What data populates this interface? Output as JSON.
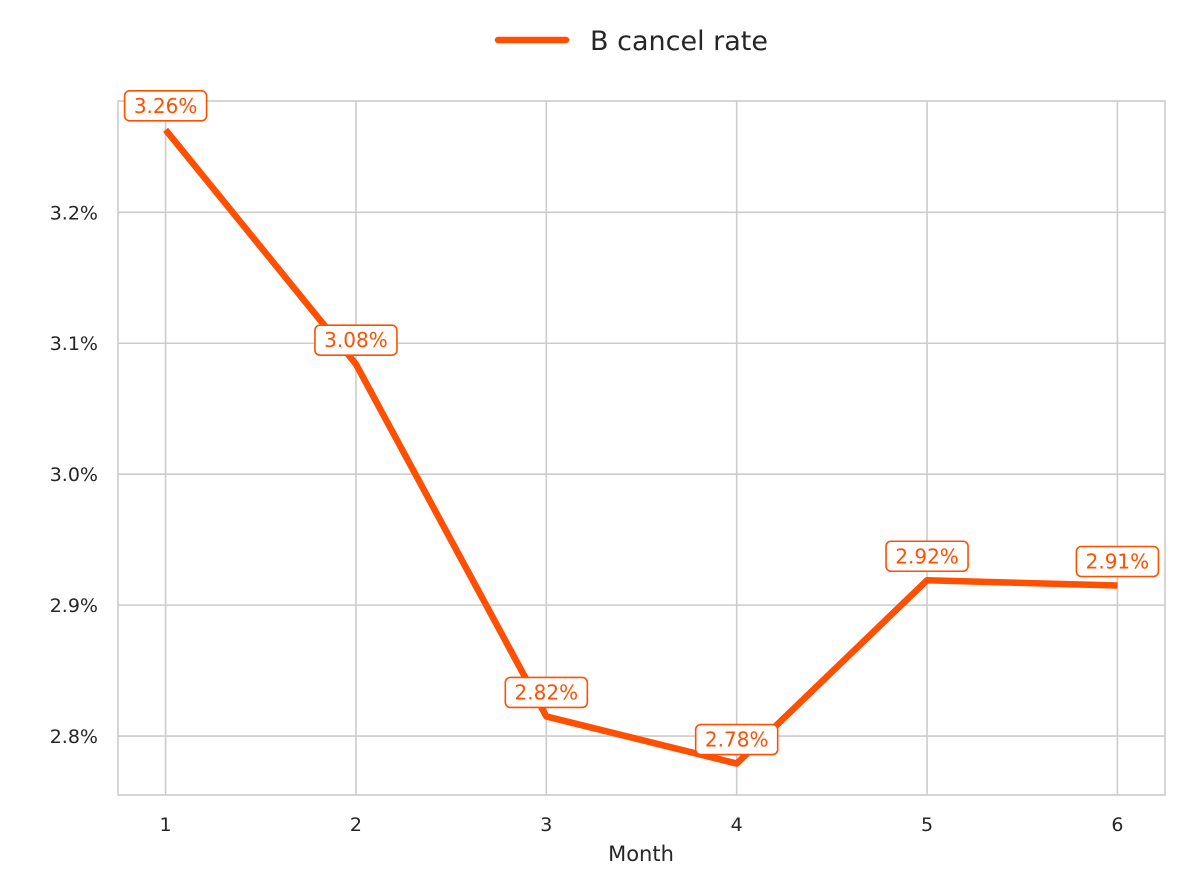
{
  "chart_data": {
    "type": "line",
    "title": "",
    "xlabel": "Month",
    "ylabel": "",
    "x": [
      1,
      2,
      3,
      4,
      5,
      6
    ],
    "x_tick_labels": [
      "1",
      "2",
      "3",
      "4",
      "5",
      "6"
    ],
    "xlim": [
      0.75,
      6.25
    ],
    "ylim": [
      2.755,
      3.285
    ],
    "y_ticks": [
      2.8,
      2.9,
      3.0,
      3.1,
      3.2
    ],
    "y_tick_labels": [
      "2.8%",
      "2.9%",
      "3.0%",
      "3.1%",
      "3.2%"
    ],
    "y_unit": "percent",
    "grid": true,
    "legend_position": "top-center",
    "series": [
      {
        "name": "B cancel rate",
        "color": "#FF4F00",
        "values": [
          3.263,
          3.084,
          2.815,
          2.779,
          2.919,
          2.915
        ],
        "data_labels": [
          "3.26%",
          "3.08%",
          "2.82%",
          "2.78%",
          "2.92%",
          "2.91%"
        ]
      }
    ]
  }
}
